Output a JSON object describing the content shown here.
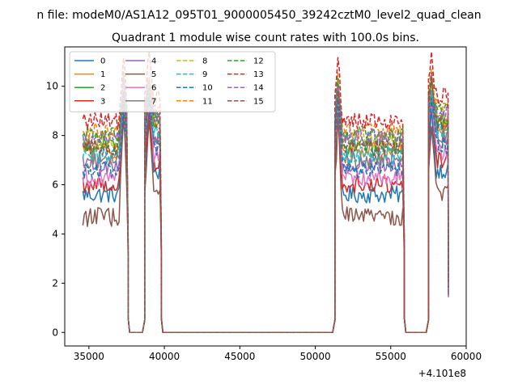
{
  "figure": {
    "suptitle": "n file: modeM0/AS1A12_095T01_9000005450_39242cztM0_level2_quad_clean",
    "offset_text": "+4.101e8"
  },
  "chart_data": {
    "type": "line",
    "title": "Quadrant 1 module wise count rates with 100.0s bins.",
    "xlabel": "",
    "ylabel": "",
    "xlim": [
      33400,
      60000
    ],
    "ylim": [
      -0.55,
      11.6
    ],
    "x_ticks": [
      35000,
      40000,
      45000,
      50000,
      55000,
      60000
    ],
    "x_tick_labels": [
      "35000",
      "40000",
      "45000",
      "50000",
      "55000",
      "60000"
    ],
    "y_ticks": [
      0,
      2,
      4,
      6,
      8,
      10
    ],
    "y_tick_labels": [
      "0",
      "2",
      "4",
      "6",
      "8",
      "10"
    ],
    "grid": false,
    "legend": {
      "placement": "top-left",
      "columns": 4
    },
    "segments": [
      {
        "start": 34600,
        "end": 37500,
        "peak_time": 37300,
        "ramp_down_to": 37700
      },
      {
        "start": 38700,
        "end": 39700,
        "peak_time": 39000,
        "ramp_up_from": 38700,
        "ramp_down_to": 39900
      },
      {
        "start": 51300,
        "end": 55800,
        "peak_time": 51500,
        "ramp_up_from": 51300,
        "ramp_down_to": 56000
      },
      {
        "start": 57500,
        "end": 58800,
        "peak_time": 57700,
        "ramp_up_from": 57500
      }
    ],
    "gap_level": 0,
    "series": [
      {
        "name": "0",
        "color": "#1f77b4",
        "dash": "solid",
        "base": 5.6,
        "peak": 9.1,
        "noise": 0.35
      },
      {
        "name": "1",
        "color": "#ff7f0e",
        "dash": "solid",
        "base": 7.4,
        "peak": 10.3,
        "noise": 0.35
      },
      {
        "name": "2",
        "color": "#2ca02c",
        "dash": "solid",
        "base": 7.6,
        "peak": 10.0,
        "noise": 0.35
      },
      {
        "name": "3",
        "color": "#d62728",
        "dash": "solid",
        "base": 6.0,
        "peak": 9.3,
        "noise": 0.35
      },
      {
        "name": "4",
        "color": "#9467bd",
        "dash": "solid",
        "base": 6.8,
        "peak": 9.6,
        "noise": 0.35
      },
      {
        "name": "5",
        "color": "#8c564b",
        "dash": "solid",
        "base": 4.7,
        "peak": 8.7,
        "noise": 0.4
      },
      {
        "name": "6",
        "color": "#e377c2",
        "dash": "solid",
        "base": 6.3,
        "peak": 9.4,
        "noise": 0.35
      },
      {
        "name": "7",
        "color": "#7f7f7f",
        "dash": "solid",
        "base": 7.0,
        "peak": 9.7,
        "noise": 0.35
      },
      {
        "name": "8",
        "color": "#bcbd22",
        "dash": "dashed",
        "base": 7.8,
        "peak": 10.1,
        "noise": 0.35
      },
      {
        "name": "9",
        "color": "#17becf",
        "dash": "dashed",
        "base": 7.2,
        "peak": 9.8,
        "noise": 0.35
      },
      {
        "name": "10",
        "color": "#1f77b4",
        "dash": "dashed",
        "base": 6.6,
        "peak": 9.5,
        "noise": 0.35
      },
      {
        "name": "11",
        "color": "#ff7f0e",
        "dash": "dashed",
        "base": 8.2,
        "peak": 10.6,
        "noise": 0.35
      },
      {
        "name": "12",
        "color": "#2ca02c",
        "dash": "dashed",
        "base": 8.0,
        "peak": 10.4,
        "noise": 0.35
      },
      {
        "name": "13",
        "color": "#d62728",
        "dash": "dashed",
        "base": 8.6,
        "peak": 11.3,
        "noise": 0.35
      },
      {
        "name": "14",
        "color": "#9467bd",
        "dash": "dashed",
        "base": 7.9,
        "peak": 10.2,
        "noise": 0.35
      },
      {
        "name": "15",
        "color": "#8c564b",
        "dash": "dashed",
        "base": 7.5,
        "peak": 10.0,
        "noise": 0.35
      }
    ]
  }
}
